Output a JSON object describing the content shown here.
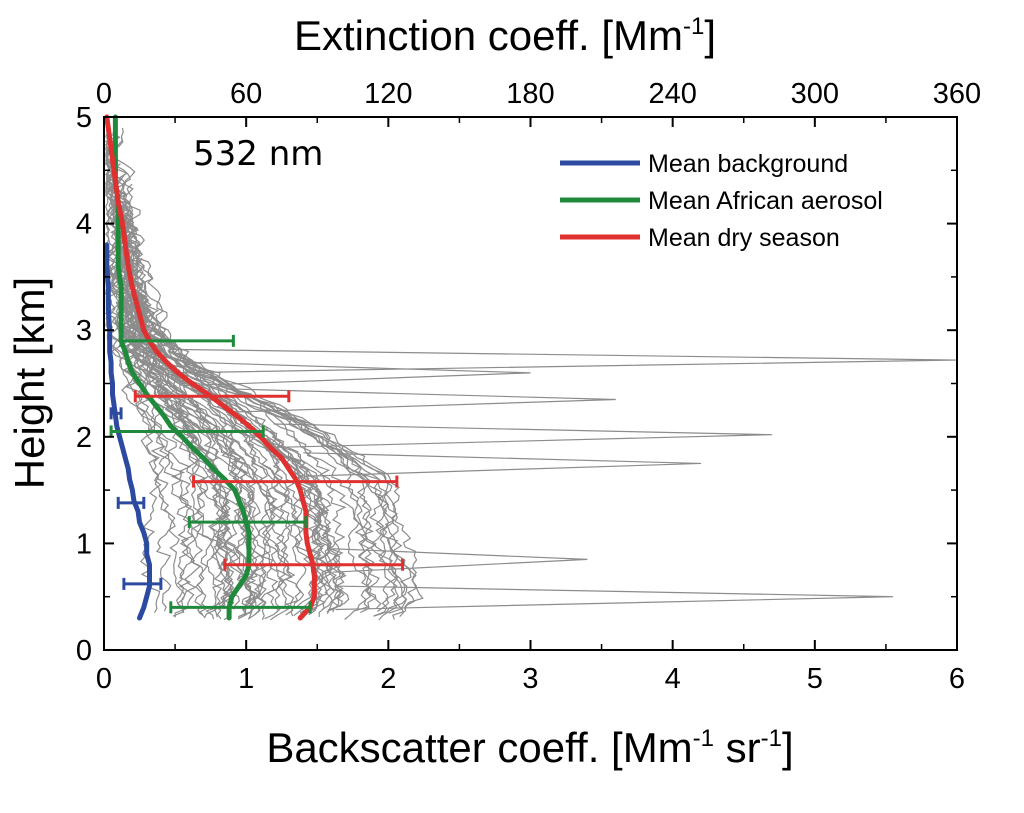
{
  "chart_data": {
    "type": "line",
    "annotation": "532 nm",
    "xlabel_bottom": {
      "main": "Backscatter coeff. [Mm",
      "sup1": "-1",
      "mid": " sr",
      "sup2": "-1",
      "end": "]"
    },
    "xlabel_top": {
      "main": "Extinction coeff. [Mm",
      "sup": "-1",
      "end": "]"
    },
    "ylabel": "Height [km]",
    "xlim_bottom": [
      0,
      6
    ],
    "xlim_top": [
      0,
      360
    ],
    "ylim": [
      0,
      5
    ],
    "x_ticks_bottom": [
      "0",
      "1",
      "2",
      "3",
      "4",
      "5",
      "6"
    ],
    "x_ticks_top": [
      "0",
      "60",
      "120",
      "180",
      "240",
      "300",
      "360"
    ],
    "y_ticks": [
      "0",
      "1",
      "2",
      "3",
      "4",
      "5"
    ],
    "grid": false,
    "legend_position": "top-right",
    "colors": {
      "background": "#2b4aa0",
      "african": "#1f8a3c",
      "dry": "#e03030",
      "individual": "#8c8c8c"
    },
    "series": [
      {
        "name": "Mean background",
        "color": "#2b4aa0",
        "points": [
          [
            0.25,
            0.3
          ],
          [
            0.28,
            0.4
          ],
          [
            0.3,
            0.5
          ],
          [
            0.32,
            0.6
          ],
          [
            0.32,
            0.7
          ],
          [
            0.32,
            0.8
          ],
          [
            0.3,
            0.9
          ],
          [
            0.3,
            1.0
          ],
          [
            0.28,
            1.1
          ],
          [
            0.25,
            1.2
          ],
          [
            0.24,
            1.3
          ],
          [
            0.21,
            1.4
          ],
          [
            0.2,
            1.5
          ],
          [
            0.18,
            1.6
          ],
          [
            0.17,
            1.7
          ],
          [
            0.15,
            1.8
          ],
          [
            0.13,
            1.9
          ],
          [
            0.11,
            2.0
          ],
          [
            0.09,
            2.1
          ],
          [
            0.08,
            2.2
          ],
          [
            0.07,
            2.3
          ],
          [
            0.06,
            2.4
          ],
          [
            0.06,
            2.5
          ],
          [
            0.05,
            2.6
          ],
          [
            0.05,
            2.7
          ],
          [
            0.04,
            2.8
          ],
          [
            0.04,
            2.9
          ],
          [
            0.04,
            3.0
          ],
          [
            0.03,
            3.2
          ],
          [
            0.03,
            3.4
          ],
          [
            0.02,
            3.6
          ],
          [
            0.02,
            3.8
          ]
        ]
      },
      {
        "name": "Mean African aerosol",
        "color": "#1f8a3c",
        "points": [
          [
            0.88,
            0.3
          ],
          [
            0.88,
            0.4
          ],
          [
            0.9,
            0.5
          ],
          [
            0.95,
            0.6
          ],
          [
            1.0,
            0.7
          ],
          [
            1.02,
            0.8
          ],
          [
            1.02,
            0.9
          ],
          [
            1.02,
            1.0
          ],
          [
            1.02,
            1.1
          ],
          [
            1.0,
            1.2
          ],
          [
            0.98,
            1.3
          ],
          [
            0.95,
            1.4
          ],
          [
            0.92,
            1.5
          ],
          [
            0.85,
            1.6
          ],
          [
            0.77,
            1.7
          ],
          [
            0.7,
            1.8
          ],
          [
            0.62,
            1.9
          ],
          [
            0.55,
            2.0
          ],
          [
            0.47,
            2.1
          ],
          [
            0.42,
            2.2
          ],
          [
            0.36,
            2.3
          ],
          [
            0.3,
            2.4
          ],
          [
            0.25,
            2.5
          ],
          [
            0.2,
            2.6
          ],
          [
            0.17,
            2.7
          ],
          [
            0.15,
            2.8
          ],
          [
            0.12,
            2.9
          ],
          [
            0.12,
            3.0
          ],
          [
            0.12,
            3.2
          ],
          [
            0.12,
            3.4
          ],
          [
            0.1,
            3.6
          ],
          [
            0.1,
            3.8
          ],
          [
            0.1,
            4.0
          ],
          [
            0.1,
            4.2
          ],
          [
            0.08,
            4.4
          ],
          [
            0.08,
            4.6
          ],
          [
            0.08,
            4.8
          ],
          [
            0.08,
            5.0
          ]
        ]
      },
      {
        "name": "Mean dry season",
        "color": "#e03030",
        "points": [
          [
            1.38,
            0.3
          ],
          [
            1.45,
            0.4
          ],
          [
            1.48,
            0.5
          ],
          [
            1.48,
            0.6
          ],
          [
            1.48,
            0.7
          ],
          [
            1.47,
            0.8
          ],
          [
            1.45,
            0.9
          ],
          [
            1.43,
            1.0
          ],
          [
            1.42,
            1.1
          ],
          [
            1.42,
            1.2
          ],
          [
            1.42,
            1.3
          ],
          [
            1.4,
            1.4
          ],
          [
            1.38,
            1.5
          ],
          [
            1.35,
            1.6
          ],
          [
            1.3,
            1.7
          ],
          [
            1.25,
            1.8
          ],
          [
            1.17,
            1.9
          ],
          [
            1.1,
            2.0
          ],
          [
            1.02,
            2.1
          ],
          [
            0.93,
            2.2
          ],
          [
            0.83,
            2.3
          ],
          [
            0.73,
            2.4
          ],
          [
            0.62,
            2.5
          ],
          [
            0.52,
            2.6
          ],
          [
            0.44,
            2.7
          ],
          [
            0.37,
            2.8
          ],
          [
            0.32,
            2.9
          ],
          [
            0.28,
            3.0
          ],
          [
            0.24,
            3.2
          ],
          [
            0.2,
            3.4
          ],
          [
            0.17,
            3.6
          ],
          [
            0.15,
            3.8
          ],
          [
            0.13,
            4.0
          ],
          [
            0.1,
            4.2
          ],
          [
            0.08,
            4.4
          ],
          [
            0.06,
            4.6
          ],
          [
            0.04,
            4.8
          ],
          [
            0.02,
            5.0
          ]
        ]
      }
    ],
    "error_bars": [
      {
        "color": "#2b4aa0",
        "y": 0.62,
        "x_low": 0.14,
        "x_high": 0.4
      },
      {
        "color": "#2b4aa0",
        "y": 1.38,
        "x_low": 0.1,
        "x_high": 0.28
      },
      {
        "color": "#2b4aa0",
        "y": 2.22,
        "x_low": 0.05,
        "x_high": 0.12
      },
      {
        "color": "#1f8a3c",
        "y": 0.4,
        "x_low": 0.47,
        "x_high": 1.45
      },
      {
        "color": "#1f8a3c",
        "y": 1.2,
        "x_low": 0.6,
        "x_high": 1.42
      },
      {
        "color": "#1f8a3c",
        "y": 2.05,
        "x_low": 0.05,
        "x_high": 1.12
      },
      {
        "color": "#1f8a3c",
        "y": 2.9,
        "x_low": 0.12,
        "x_high": 0.91
      },
      {
        "color": "#e03030",
        "y": 0.8,
        "x_low": 0.85,
        "x_high": 2.1
      },
      {
        "color": "#e03030",
        "y": 1.58,
        "x_low": 0.63,
        "x_high": 2.06
      },
      {
        "color": "#e03030",
        "y": 2.38,
        "x_low": 0.22,
        "x_high": 1.3
      }
    ],
    "individual_profiles_count": 60,
    "individual_profile_spikes": [
      [
        5.55,
        0.5
      ],
      [
        6.0,
        2.72
      ],
      [
        4.7,
        2.02
      ],
      [
        3.6,
        2.35
      ],
      [
        4.2,
        1.75
      ],
      [
        3.4,
        0.85
      ],
      [
        3.0,
        2.6
      ]
    ]
  }
}
